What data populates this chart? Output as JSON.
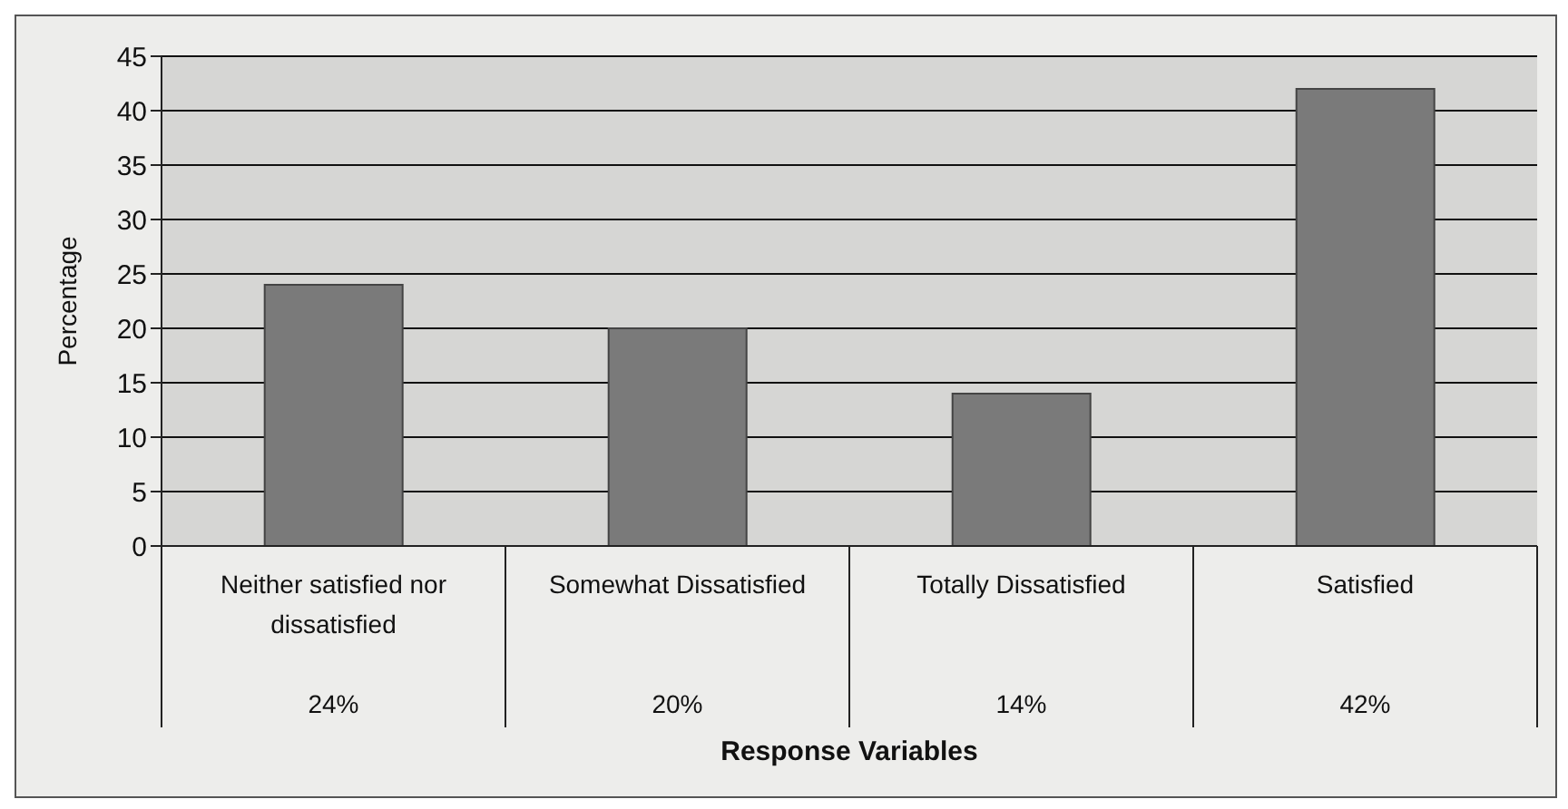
{
  "chart_data": {
    "type": "bar",
    "xlabel": "Response Variables",
    "ylabel": "Percentage",
    "categories": [
      "Neither satisfied nor dissatisfied",
      "Somewhat Dissatisfied",
      "Totally Dissatisfied",
      "Satisfied"
    ],
    "values": [
      24,
      20,
      14,
      42
    ],
    "value_labels": [
      "24%",
      "20%",
      "14%",
      "42%"
    ],
    "color": "#7a7a7a",
    "ylim": [
      0,
      45
    ],
    "yticks": [
      0,
      5,
      10,
      15,
      20,
      25,
      30,
      35,
      40,
      45
    ],
    "grid": "y"
  }
}
